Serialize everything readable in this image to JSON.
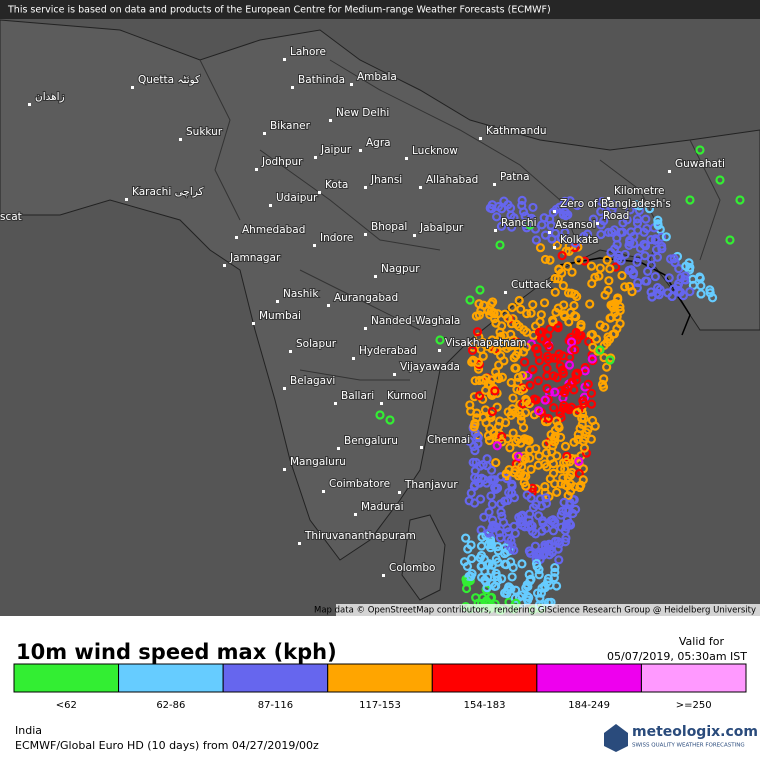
{
  "notice": "This service is based on data and products of the European Centre for Medium-range Weather Forecasts (ECMWF)",
  "cities": [
    "Lahore",
    "Quetta کوئٹہ",
    "Bathinda",
    "Ambala",
    "زاهدان",
    "New Delhi",
    "Sukkur",
    "Bikaner",
    "Kathmandu",
    "Jaipur",
    "Agra",
    "Lucknow",
    "Jodhpur",
    "Guwahati",
    "Kota",
    "Jhansi",
    "Allahabad",
    "Patna",
    "Karachi کراچی",
    "Udaipur",
    "Kilometre",
    "Zero of Bangladesh's",
    "Road",
    "Ranchi",
    "Asansol",
    "scat",
    "Ahmedabad",
    "Indore",
    "Bhopal",
    "Jabalpur",
    "Kolkata",
    "Jamnagar",
    "Nagpur",
    "Cuttack",
    "Nashik",
    "Aurangabad",
    "Mumbai",
    "Nanded-Waghala",
    "Visakhapatnam",
    "Solapur",
    "Hyderabad",
    "Vijayawada",
    "Belagavi",
    "Ballari",
    "Kurnool",
    "Chennai",
    "Bengaluru",
    "Mangaluru",
    "Coimbatore",
    "Thanjavur",
    "Madurai",
    "Thiruvananthapuram",
    "Colombo"
  ],
  "attribution": "Map data © OpenStreetMap contributors, rendering GIScience Research Group @ Heidelberg University",
  "legend": {
    "title": "10m wind speed max (kph)",
    "valid_label": "Valid for",
    "valid_time": "05/07/2019, 05:30am IST",
    "items": [
      {
        "label": "<62",
        "color": "#33ee33"
      },
      {
        "label": "62-86",
        "color": "#66ccff"
      },
      {
        "label": "87-116",
        "color": "#6666ee"
      },
      {
        "label": "117-153",
        "color": "#ffa500"
      },
      {
        "label": "154-183",
        "color": "#ff0000"
      },
      {
        "label": "184-249",
        "color": "#ee00ee"
      },
      {
        "label": ">=250",
        "color": "#ff99ff"
      }
    ]
  },
  "footer": {
    "region": "India",
    "model": "ECMWF/Global Euro HD (10 days) from 04/27/2019/00z",
    "brand": "meteologix.com",
    "tagline": "SWISS QUALITY WEATHER FORECASTING"
  }
}
